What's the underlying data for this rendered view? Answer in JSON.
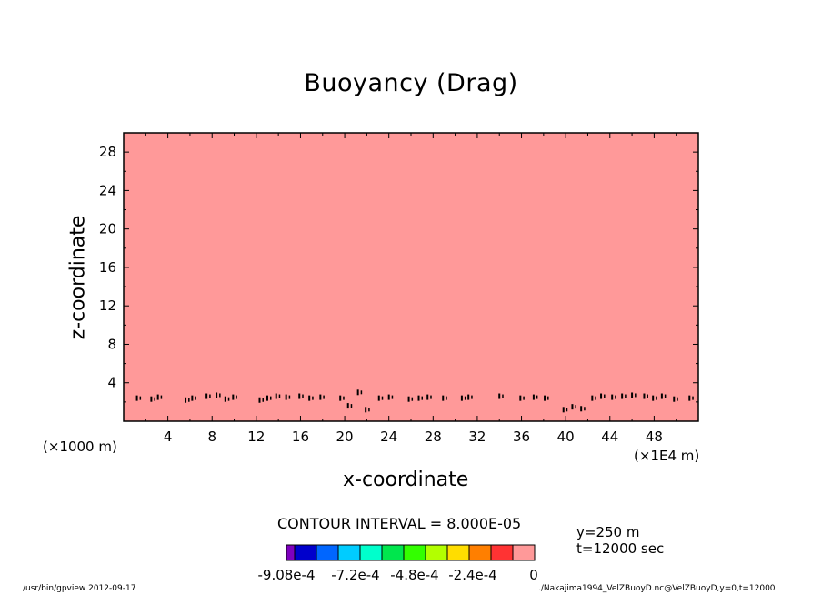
{
  "chart_data": {
    "type": "heatmap",
    "title": "Buoyancy (Drag)",
    "xlabel": "x-coordinate",
    "ylabel": "z-coordinate",
    "x_scale_note": "(×1E4 m)",
    "y_scale_note": "(×1000 m)",
    "xlim": [
      0,
      52
    ],
    "ylim": [
      0,
      30
    ],
    "x_ticks": [
      4,
      8,
      12,
      16,
      20,
      24,
      28,
      32,
      36,
      40,
      44,
      48
    ],
    "y_ticks": [
      4,
      8,
      12,
      16,
      20,
      24,
      28
    ],
    "fill_color": "#ff9999",
    "fill_value": 0,
    "contour_interval_text": "CONTOUR INTERVAL = 8.000E-05",
    "info_lines": [
      "y=250 m",
      "t=12000 sec"
    ],
    "colorbar": {
      "colors": [
        "#7f00bf",
        "#0000cc",
        "#0066ff",
        "#00ccff",
        "#00ffcc",
        "#00e64d",
        "#33ff00",
        "#b3ff00",
        "#ffdd00",
        "#ff7f00",
        "#ff3333",
        "#ff9999"
      ],
      "tick_labels": [
        "-9.08e-4",
        "-7.2e-4",
        "-4.8e-4",
        "-2.4e-4",
        "0"
      ]
    },
    "spots": [
      {
        "x": 1.2,
        "z": 2.4
      },
      {
        "x": 2.5,
        "z": 2.3
      },
      {
        "x": 3.1,
        "z": 2.5
      },
      {
        "x": 5.6,
        "z": 2.2
      },
      {
        "x": 6.2,
        "z": 2.4
      },
      {
        "x": 7.5,
        "z": 2.6
      },
      {
        "x": 8.4,
        "z": 2.7
      },
      {
        "x": 9.2,
        "z": 2.3
      },
      {
        "x": 9.9,
        "z": 2.5
      },
      {
        "x": 12.3,
        "z": 2.2
      },
      {
        "x": 13.0,
        "z": 2.4
      },
      {
        "x": 13.8,
        "z": 2.6
      },
      {
        "x": 14.7,
        "z": 2.5
      },
      {
        "x": 15.9,
        "z": 2.6
      },
      {
        "x": 16.8,
        "z": 2.4
      },
      {
        "x": 17.8,
        "z": 2.5
      },
      {
        "x": 19.6,
        "z": 2.4
      },
      {
        "x": 20.3,
        "z": 1.6
      },
      {
        "x": 21.2,
        "z": 3.0
      },
      {
        "x": 21.9,
        "z": 1.2
      },
      {
        "x": 23.1,
        "z": 2.4
      },
      {
        "x": 24.0,
        "z": 2.5
      },
      {
        "x": 25.8,
        "z": 2.3
      },
      {
        "x": 26.7,
        "z": 2.4
      },
      {
        "x": 27.5,
        "z": 2.5
      },
      {
        "x": 28.9,
        "z": 2.4
      },
      {
        "x": 30.6,
        "z": 2.4
      },
      {
        "x": 31.2,
        "z": 2.5
      },
      {
        "x": 34.0,
        "z": 2.6
      },
      {
        "x": 35.9,
        "z": 2.4
      },
      {
        "x": 37.1,
        "z": 2.5
      },
      {
        "x": 38.1,
        "z": 2.4
      },
      {
        "x": 39.8,
        "z": 1.2
      },
      {
        "x": 40.6,
        "z": 1.5
      },
      {
        "x": 41.4,
        "z": 1.3
      },
      {
        "x": 42.4,
        "z": 2.4
      },
      {
        "x": 43.2,
        "z": 2.6
      },
      {
        "x": 44.2,
        "z": 2.5
      },
      {
        "x": 45.1,
        "z": 2.6
      },
      {
        "x": 46.0,
        "z": 2.7
      },
      {
        "x": 47.1,
        "z": 2.6
      },
      {
        "x": 47.9,
        "z": 2.4
      },
      {
        "x": 48.7,
        "z": 2.6
      },
      {
        "x": 49.8,
        "z": 2.3
      },
      {
        "x": 51.2,
        "z": 2.4
      }
    ]
  },
  "footer": {
    "left": "/usr/bin/gpview   2012-09-17",
    "right": "./Nakajima1994_VelZBuoyD.nc@VelZBuoyD,y=0,t=12000"
  }
}
